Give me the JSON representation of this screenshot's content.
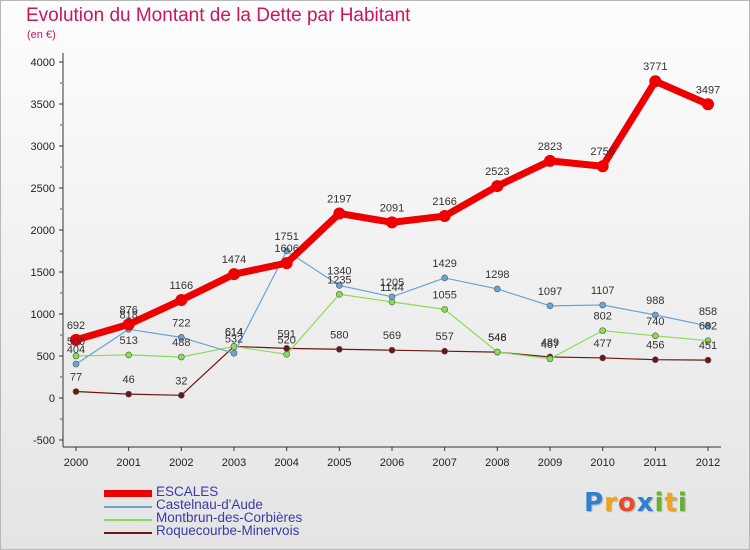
{
  "title": "Evolution du Montant de la Dette par Habitant",
  "subtitle": "(en €)",
  "logo": {
    "text": "Proxiti",
    "letters": [
      {
        "ch": "P",
        "color": "#2f7fd0"
      },
      {
        "ch": "r",
        "color": "#f2a21c"
      },
      {
        "ch": "o",
        "color": "#e84a2a"
      },
      {
        "ch": "x",
        "color": "#2f7fd0"
      },
      {
        "ch": "i",
        "color": "#66b22a"
      },
      {
        "ch": "t",
        "color": "#f2a21c"
      },
      {
        "ch": "i",
        "color": "#66b22a"
      }
    ]
  },
  "chart_data": {
    "type": "line",
    "x": [
      "2000",
      "2001",
      "2002",
      "2003",
      "2004",
      "2005",
      "2006",
      "2007",
      "2008",
      "2009",
      "2010",
      "2011",
      "2012"
    ],
    "ylim": [
      -500,
      4000
    ],
    "yticks": [
      -500,
      0,
      500,
      1000,
      1500,
      2000,
      2500,
      3000,
      3500,
      4000
    ],
    "grid": false,
    "legend_position": "bottom-left",
    "series": [
      {
        "name": "ESCALES",
        "color": "#ee0000",
        "width": 7,
        "marker": 6,
        "values": [
          692,
          876,
          1166,
          1474,
          1606,
          2197,
          2091,
          2166,
          2523,
          2823,
          2759,
          3771,
          3497
        ],
        "labels": [
          "692",
          "876",
          "1166",
          "1474",
          "1606",
          "2197",
          "2091",
          "2166",
          "2523",
          "2823",
          "2759",
          "3771",
          "3497"
        ]
      },
      {
        "name": "Castelnau-d'Aude",
        "color": "#6aa3d6",
        "width": 1.2,
        "marker": 3,
        "values": [
          404,
          818,
          722,
          532,
          1751,
          1340,
          1205,
          1429,
          1298,
          1097,
          1107,
          988,
          858
        ],
        "labels": [
          "404",
          "818",
          "722",
          "532",
          "1751",
          "1340",
          "1205",
          "1429",
          "1298",
          "1097",
          "1107",
          "988",
          "858"
        ]
      },
      {
        "name": "Montbrun-des-Corbières",
        "color": "#88dd55",
        "width": 1.2,
        "marker": 3,
        "values": [
          500,
          513,
          488,
          614,
          520,
          1235,
          1144,
          1055,
          548,
          467,
          802,
          740,
          682
        ],
        "labels": [
          "500",
          "513",
          "488",
          "614",
          "520",
          "1235",
          "1144",
          "1055",
          "548",
          "467",
          "802",
          "740",
          "682"
        ]
      },
      {
        "name": "Roquecourbe-Minervois",
        "color": "#6b1515",
        "width": 1.2,
        "marker": 3,
        "values": [
          77,
          46,
          32,
          614,
          591,
          580,
          569,
          557,
          546,
          489,
          477,
          456,
          451
        ],
        "labels": [
          "77",
          "46",
          "32",
          "614",
          "591",
          "580",
          "569",
          "557",
          "546",
          "489",
          "477",
          "456",
          "451"
        ]
      }
    ]
  }
}
